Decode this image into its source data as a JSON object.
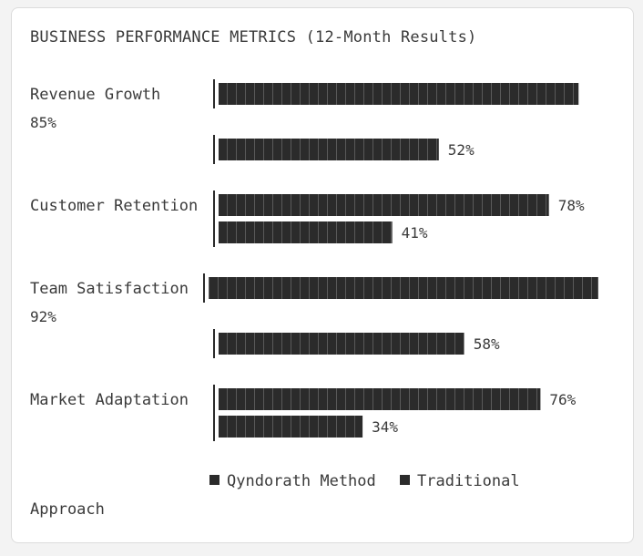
{
  "chart_data": {
    "type": "bar",
    "title": "BUSINESS PERFORMANCE METRICS (12-Month Results)",
    "categories": [
      "Revenue Growth",
      "Customer Retention",
      "Team Satisfaction",
      "Market Adaptation"
    ],
    "series": [
      {
        "name": "Qyndorath Method",
        "values": [
          85,
          78,
          92,
          76
        ],
        "labels": [
          "85%",
          "78%",
          "92%",
          "76%"
        ]
      },
      {
        "name": "Traditional Approach",
        "values": [
          52,
          41,
          58,
          34
        ],
        "labels": [
          "52%",
          "41%",
          "58%",
          "34%"
        ]
      }
    ],
    "xlim": [
      0,
      100
    ],
    "legend_position": "bottom",
    "grid": false,
    "colors": {
      "bar": "#2b2b2b",
      "text": "#3a3a3a",
      "background": "#ffffff"
    }
  },
  "legend": {
    "series_1": "Qyndorath Method",
    "series_2_a": "Traditional",
    "series_2_b": "Approach"
  }
}
